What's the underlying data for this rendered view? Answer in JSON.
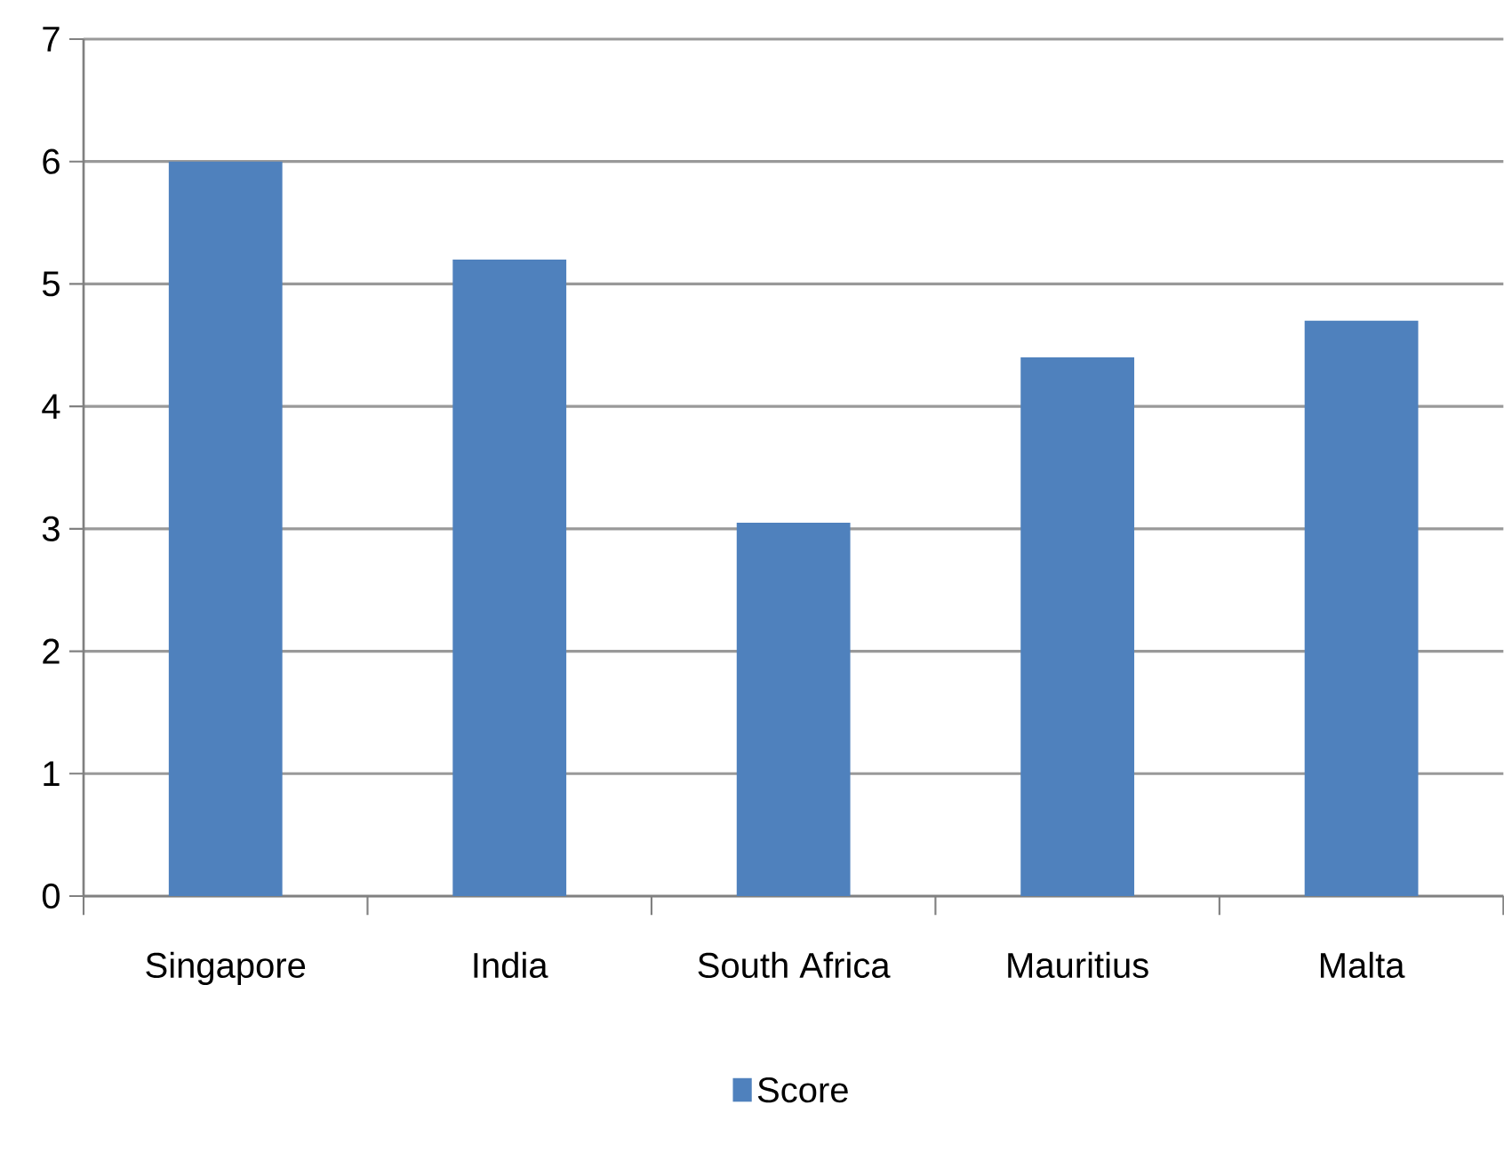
{
  "chart_data": {
    "type": "bar",
    "categories": [
      "Singapore",
      "India",
      "South Africa",
      "Mauritius",
      "Malta"
    ],
    "series": [
      {
        "name": "Score",
        "color": "#4f81bd",
        "values": [
          6.0,
          5.2,
          3.05,
          4.4,
          4.7
        ]
      }
    ],
    "ylim": [
      0,
      7
    ],
    "yticks": [
      0,
      1,
      2,
      3,
      4,
      5,
      6,
      7
    ],
    "grid": "y",
    "legend": "bottom"
  }
}
